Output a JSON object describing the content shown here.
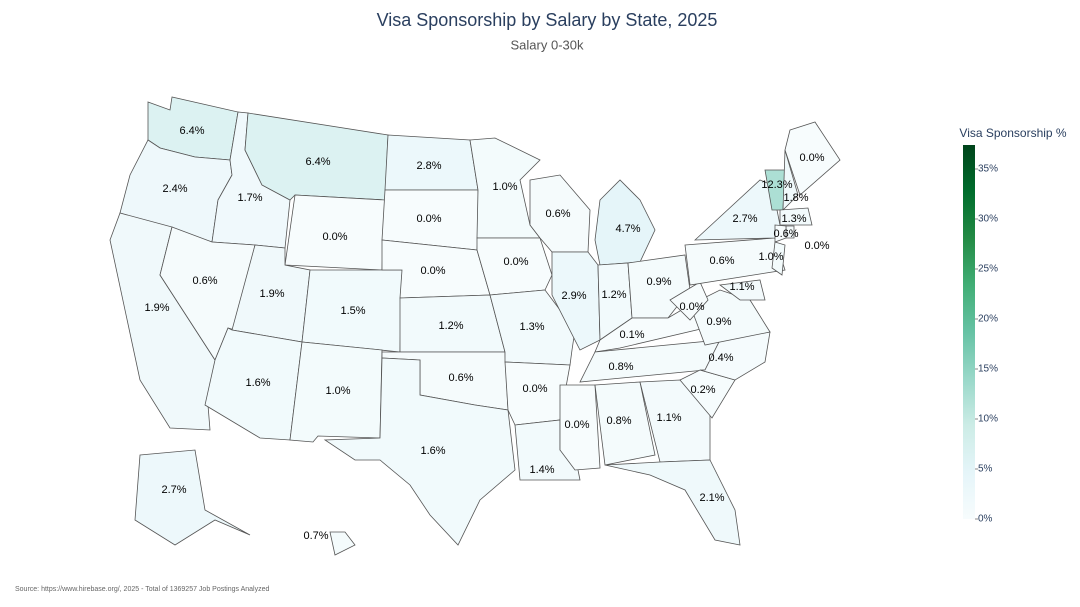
{
  "chart_data": {
    "type": "choropleth",
    "title": "Visa Sponsorship by Salary by State, 2025",
    "subtitle": "Salary 0-30k",
    "values": [
      6.4,
      2.4,
      1.9,
      1.7,
      0.6,
      6.4,
      0.0,
      1.9,
      1.5,
      1.6,
      1.0,
      2.8,
      0.0,
      0.0,
      1.2,
      0.6,
      1.6,
      1.0,
      0.0,
      1.3,
      0.0,
      1.4,
      0.6,
      2.9,
      4.7,
      1.2,
      0.9,
      0.1,
      0.8,
      0.0,
      0.8,
      1.1,
      2.1,
      0.2,
      0.4,
      0.9,
      0.0,
      0.6,
      2.7,
      12.3,
      1.8,
      0.0,
      1.3,
      0.6,
      0.0,
      1.0,
      1.1,
      2.7,
      0.7
    ],
    "value_labels": [
      "6.4%",
      "2.4%",
      "1.9%",
      "1.7%",
      "0.6%",
      "6.4%",
      "0.0%",
      "1.9%",
      "1.5%",
      "1.6%",
      "1.0%",
      "2.8%",
      "0.0%",
      "0.0%",
      "1.2%",
      "0.6%",
      "1.6%",
      "1.0%",
      "0.0%",
      "1.3%",
      "0.0%",
      "1.4%",
      "0.6%",
      "2.9%",
      "4.7%",
      "1.2%",
      "0.9%",
      "0.1%",
      "0.8%",
      "0.0%",
      "0.8%",
      "1.1%",
      "2.1%",
      "0.2%",
      "0.4%",
      "0.9%",
      "0.0%",
      "0.6%",
      "2.7%",
      "12.3%",
      "1.8%",
      "0.0%",
      "1.3%",
      "0.6%",
      "0.0%",
      "1.0%",
      "1.1%",
      "2.7%",
      "0.7%"
    ],
    "colorbar_title": "Visa Sponsorship %",
    "zlim": [
      0,
      37.4
    ],
    "zticks": [
      {
        "value": 0,
        "label": "0%"
      },
      {
        "value": 5,
        "label": "5%"
      },
      {
        "value": 10,
        "label": "10%"
      },
      {
        "value": 15,
        "label": "15%"
      },
      {
        "value": 20,
        "label": "20%"
      },
      {
        "value": 25,
        "label": "25%"
      },
      {
        "value": 30,
        "label": "30%"
      },
      {
        "value": 35,
        "label": "35%"
      }
    ],
    "colorscale": [
      "#f7fcfd",
      "#e5f5f9",
      "#ccece6",
      "#99d8c9",
      "#66c2a4",
      "#41ae76",
      "#238b45",
      "#006d2c",
      "#00441b"
    ],
    "source": "Source: https://www.hirebase.org/, 2025 - Total of 1369257 Job Postings Analyzed"
  }
}
